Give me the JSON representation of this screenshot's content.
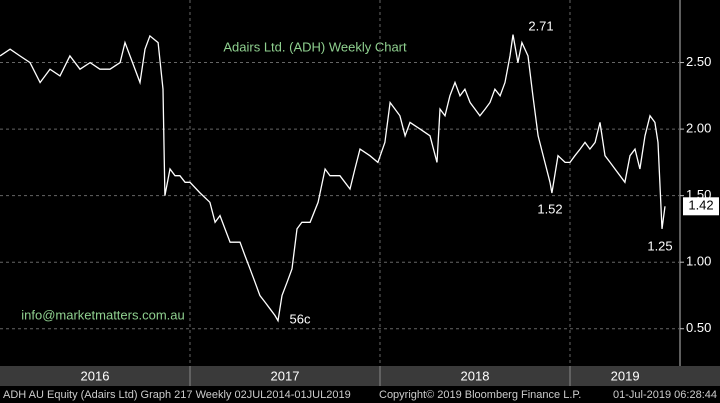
{
  "chart_data": {
    "type": "line",
    "title": "Adairs Ltd. (ADH) Weekly Chart",
    "watermark": "info@marketmatters.com.au",
    "annotations": [
      "2.71",
      "1.52",
      "56c",
      "1.25"
    ],
    "last_price": 1.42,
    "footer": [
      "ADH AU Equity (Adairs Ltd) Graph 217  Weekly 02JUL2014-01JUL2019",
      "Copyright© 2019 Bloomberg Finance L.P.",
      "01-Jul-2019 06:28:44"
    ],
    "color": "#ffffff",
    "x": [
      2016.0,
      2016.053,
      2016.105,
      2016.158,
      2016.211,
      2016.263,
      2016.316,
      2016.368,
      2016.421,
      2016.474,
      2016.526,
      2016.579,
      2016.632,
      2016.658,
      2016.684,
      2016.737,
      2016.763,
      2016.789,
      2016.832,
      2016.858,
      2016.868,
      2016.895,
      2016.921,
      2016.947,
      2016.974,
      2017.0,
      2017.053,
      2017.105,
      2017.132,
      2017.158,
      2017.184,
      2017.211,
      2017.263,
      2017.289,
      2017.316,
      2017.342,
      2017.368,
      2017.395,
      2017.421,
      2017.447,
      2017.463,
      2017.484,
      2017.511,
      2017.537,
      2017.563,
      2017.589,
      2017.632,
      2017.674,
      2017.711,
      2017.737,
      2017.789,
      2017.842,
      2017.868,
      2017.895,
      2017.947,
      2017.989,
      2018.026,
      2018.053,
      2018.079,
      2018.105,
      2018.132,
      2018.158,
      2018.211,
      2018.263,
      2018.3,
      2018.316,
      2018.342,
      2018.368,
      2018.395,
      2018.421,
      2018.447,
      2018.474,
      2018.5,
      2018.526,
      2018.553,
      2018.579,
      2018.605,
      2018.632,
      2018.658,
      2018.684,
      2018.7,
      2018.726,
      2018.747,
      2018.779,
      2018.805,
      2018.832,
      2018.868,
      2018.895,
      2018.905,
      2018.937,
      2018.974,
      2019.0,
      2019.026,
      2019.053,
      2019.079,
      2019.105,
      2019.132,
      2019.158,
      2019.184,
      2019.211,
      2019.237,
      2019.263,
      2019.289,
      2019.316,
      2019.342,
      2019.368,
      2019.395,
      2019.421,
      2019.447,
      2019.463,
      2019.484,
      2019.5
    ],
    "values": [
      2.55,
      2.6,
      2.55,
      2.5,
      2.35,
      2.45,
      2.4,
      2.55,
      2.45,
      2.5,
      2.45,
      2.45,
      2.5,
      2.65,
      2.55,
      2.35,
      2.6,
      2.7,
      2.65,
      2.3,
      1.5,
      1.7,
      1.65,
      1.65,
      1.6,
      1.6,
      1.52,
      1.45,
      1.3,
      1.35,
      1.25,
      1.15,
      1.15,
      1.05,
      0.95,
      0.85,
      0.75,
      0.7,
      0.65,
      0.6,
      0.56,
      0.75,
      0.85,
      0.95,
      1.25,
      1.3,
      1.3,
      1.45,
      1.7,
      1.65,
      1.65,
      1.55,
      1.7,
      1.85,
      1.8,
      1.75,
      1.9,
      2.2,
      2.15,
      2.1,
      1.95,
      2.05,
      2.0,
      1.95,
      1.75,
      2.15,
      2.1,
      2.25,
      2.35,
      2.25,
      2.3,
      2.2,
      2.15,
      2.1,
      2.15,
      2.2,
      2.3,
      2.25,
      2.35,
      2.55,
      2.71,
      2.5,
      2.65,
      2.55,
      2.25,
      1.95,
      1.75,
      1.6,
      1.52,
      1.8,
      1.75,
      1.75,
      1.8,
      1.85,
      1.9,
      1.85,
      1.9,
      2.05,
      1.8,
      1.75,
      1.7,
      1.65,
      1.6,
      1.8,
      1.85,
      1.7,
      1.95,
      2.1,
      2.05,
      1.9,
      1.25,
      1.42
    ],
    "xlim": [
      2016,
      2019.579
    ],
    "xticks": [
      {
        "value": 2016.5,
        "label": "2016"
      },
      {
        "value": 2017.5,
        "label": "2017"
      },
      {
        "value": 2018.5,
        "label": "2018"
      },
      {
        "value": 2019.29,
        "label": "2019"
      }
    ],
    "xgrid": [
      2017,
      2018,
      2019
    ],
    "ylim": [
      0.22,
      2.97
    ],
    "yticks": [
      {
        "value": 0.5,
        "label": "0.50"
      },
      {
        "value": 1,
        "label": "1.00"
      },
      {
        "value": 1.5,
        "label": "1.50"
      },
      {
        "value": 2,
        "label": "2.00"
      },
      {
        "value": 2.5,
        "label": "2.50"
      }
    ],
    "grid": true
  }
}
